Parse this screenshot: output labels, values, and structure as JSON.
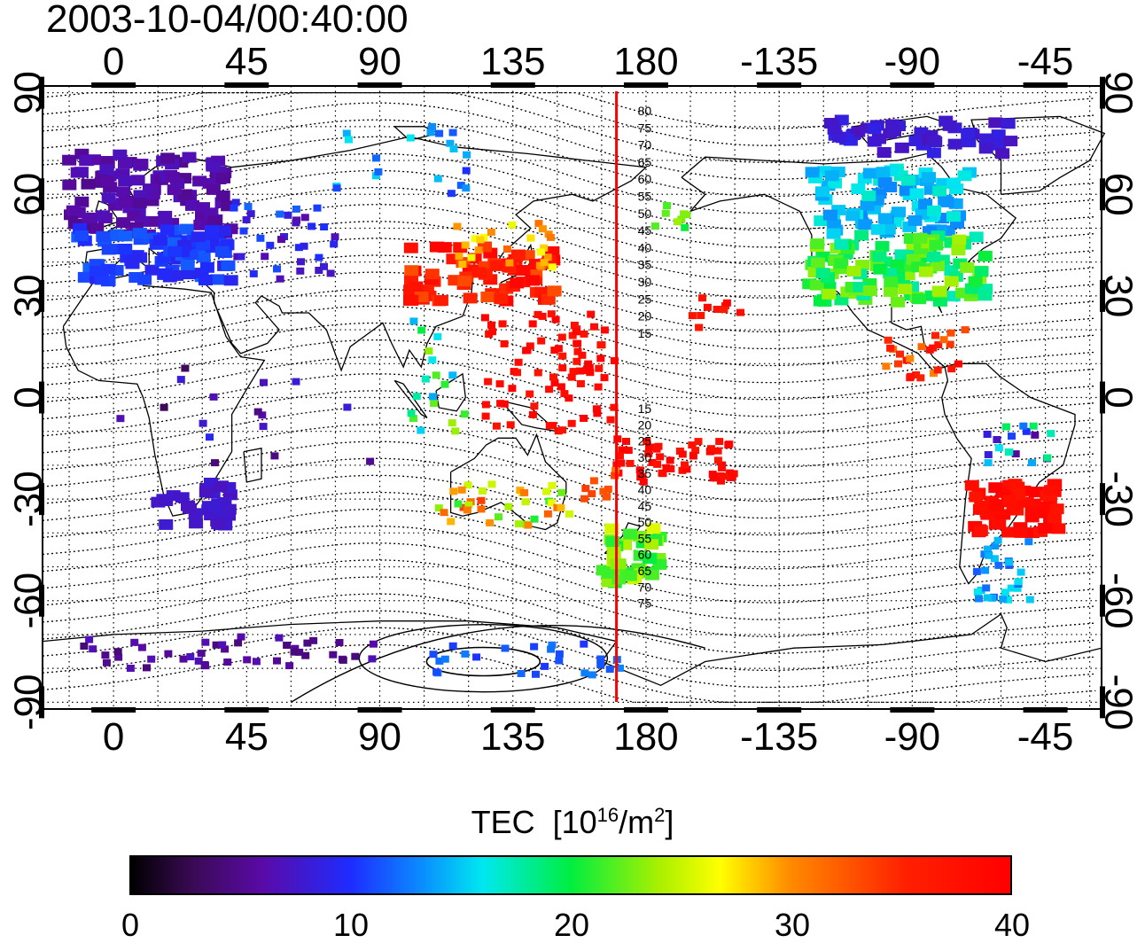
{
  "title": "2003-10-04/00:40:00",
  "map": {
    "lon_ticks_top": [
      "0",
      "45",
      "90",
      "135",
      "180",
      "-135",
      "-90",
      "-45"
    ],
    "lon_ticks_bottom": [
      "0",
      "45",
      "90",
      "135",
      "180",
      "-135",
      "-90",
      "-45"
    ],
    "lat_ticks_left": [
      "90",
      "60",
      "30",
      "0",
      "-30",
      "-60",
      "-90"
    ],
    "lat_ticks_right": [
      "90",
      "60",
      "30",
      "0",
      "-30",
      "-60",
      "-90"
    ],
    "lon_range": [
      -24,
      334
    ],
    "lat_range": [
      -92,
      92
    ],
    "meridian_line_lon": 170,
    "meridian_line_color": "#ff0000",
    "mlat_labels_north": [
      "80",
      "75",
      "70",
      "65",
      "60",
      "55",
      "50",
      "45",
      "40",
      "35",
      "30",
      "25",
      "20",
      "15"
    ],
    "mlat_labels_south": [
      "15",
      "20",
      "25",
      "30",
      "35",
      "40",
      "45",
      "50",
      "55",
      "60",
      "65",
      "70",
      "75"
    ]
  },
  "colorbar": {
    "title": "TEC",
    "unit_base": "[10",
    "unit_exp": "16",
    "unit_mid": "/m",
    "unit_exp2": "2",
    "unit_close": "]",
    "min": 0,
    "max": 40,
    "ticks": [
      "0",
      "10",
      "20",
      "30",
      "40"
    ]
  }
}
